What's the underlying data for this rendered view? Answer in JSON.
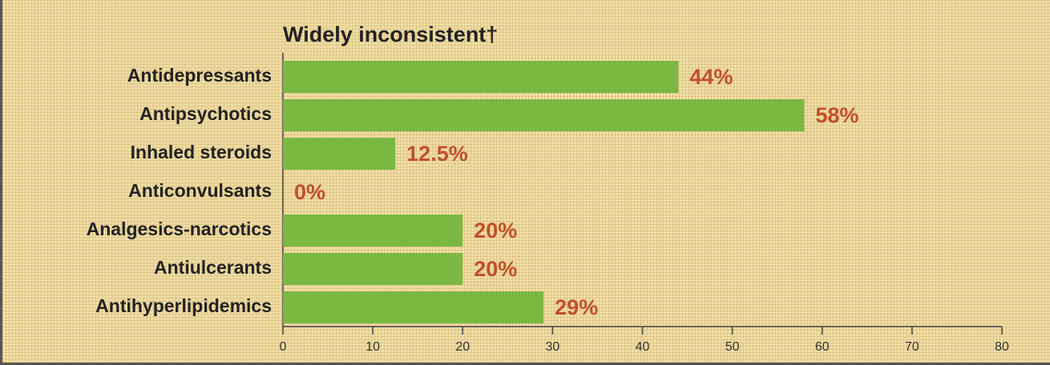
{
  "chart_data": {
    "type": "bar",
    "orientation": "horizontal",
    "title": "Widely inconsistent†",
    "categories": [
      "Antidepressants",
      "Antipsychotics",
      "Inhaled steroids",
      "Anticonvulsants",
      "Analgesics-narcotics",
      "Antiulcerants",
      "Antihyperlipidemics"
    ],
    "values": [
      44,
      58,
      12.5,
      0,
      20,
      20,
      29
    ],
    "value_labels": [
      "44%",
      "58%",
      "12.5%",
      "0%",
      "20%",
      "20%",
      "29%"
    ],
    "color": "#7ab842",
    "xlim": [
      0,
      80
    ],
    "xticks": [
      0,
      10,
      20,
      30,
      40,
      50,
      60,
      70,
      80
    ],
    "grid": false
  }
}
